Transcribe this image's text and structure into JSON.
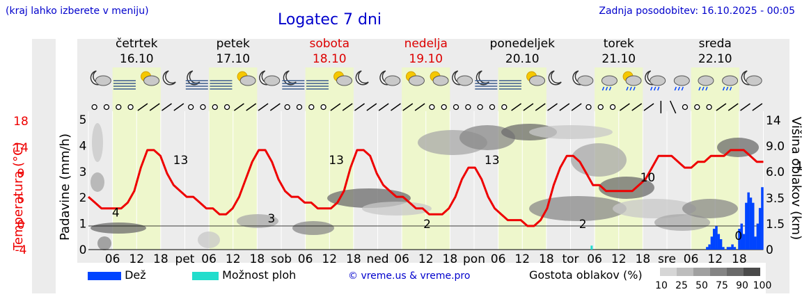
{
  "header": {
    "hint": "(kraj lahko izberete v meniju)",
    "title": "Logatec 7 dni",
    "updated": "Zadnja posodobitev: 16.10.2025 - 00:05"
  },
  "colors": {
    "temp_line": "#ee0000",
    "rain": "#0044ff",
    "storm": "#22ddcc",
    "day_band": "#eef7cc",
    "grid": "#ffffff",
    "panel": "#ececec"
  },
  "legend": {
    "rain_label": "Dež",
    "storm_label": "Možnost ploh",
    "credit": "© vreme.us & vreme.pro",
    "density_title": "Gostota oblakov (%)",
    "density_levels": [
      "10",
      "25",
      "50",
      "75",
      "90",
      "100"
    ],
    "density_colors": [
      "#d6d6d6",
      "#bdbdbd",
      "#a0a0a0",
      "#848484",
      "#6a6a6a",
      "#4a4a4a"
    ]
  },
  "chart_data": {
    "type": "line",
    "title": "Logatec 7 dni",
    "days": [
      {
        "name": "četrtek",
        "date": "16.10",
        "weekend": false,
        "short": ""
      },
      {
        "name": "petek",
        "date": "17.10",
        "weekend": false,
        "short": "pet"
      },
      {
        "name": "sobota",
        "date": "18.10",
        "weekend": true,
        "short": "sob"
      },
      {
        "name": "nedelja",
        "date": "19.10",
        "weekend": true,
        "short": "ned"
      },
      {
        "name": "ponedeljek",
        "date": "20.10",
        "weekend": false,
        "short": "pon"
      },
      {
        "name": "torek",
        "date": "21.10",
        "weekend": false,
        "short": "tor"
      },
      {
        "name": "sreda",
        "date": "22.10",
        "weekend": false,
        "short": "sre"
      }
    ],
    "hour_ticks": [
      "06",
      "12",
      "18"
    ],
    "weather_icons": [
      "moon-cloud",
      "fog",
      "sun-cloud",
      "moon",
      "moon-fog",
      "fog",
      "sun-cloud",
      "moon-cloud",
      "moon-fog",
      "fog",
      "sun-cloud",
      "moon",
      "moon-cloud",
      "sun-cloud",
      "sun-cloud",
      "moon-cloud",
      "moon-fog",
      "fog",
      "sun-cloud",
      "moon",
      "moon-cloud",
      "rain-cloud",
      "sun-rain",
      "moon-rain",
      "rain-cloud",
      "rain-cloud",
      "rain-cloud",
      "moon-cloud"
    ],
    "wind_symbols": [
      "o",
      "o",
      "o",
      "o",
      "/",
      "/",
      "/",
      "/",
      "o",
      "o",
      "o",
      "o",
      "/",
      "/",
      "/",
      "/",
      "o",
      "o",
      "o",
      "o",
      "/",
      "/",
      "/",
      "/",
      "/",
      "/",
      "/",
      "/",
      "o",
      "o",
      "o",
      "o",
      "o",
      "o",
      "o",
      "/",
      "/",
      "/",
      "/",
      "/",
      "/",
      "o",
      "o",
      "o",
      "/",
      "/",
      "/",
      "|",
      "\\",
      "o",
      "o",
      "o",
      "/",
      "/",
      "/",
      "/"
    ],
    "precip_axis": {
      "label": "Padavine (mm/h)",
      "ticks": [
        "0",
        "1",
        "2",
        "3",
        "4",
        "5"
      ],
      "ylim": [
        0,
        5
      ]
    },
    "temp_axis": {
      "label": "Temperatura (°C)",
      "ticks": [
        "-4",
        "0",
        "5",
        "9",
        "14",
        "18"
      ],
      "ylim": [
        -4,
        18
      ]
    },
    "cloud_axis": {
      "label": "Višina oblakov (km)",
      "ticks": [
        "0",
        "1.5",
        "3.5",
        "6.0",
        "9.0",
        "14"
      ]
    },
    "temperature": [
      5,
      4,
      3,
      3,
      3,
      3,
      4,
      6,
      10,
      13,
      13,
      12,
      9,
      7,
      6,
      5,
      5,
      4,
      3,
      3,
      2,
      2,
      3,
      5,
      8,
      11,
      13,
      13,
      11,
      8,
      6,
      5,
      5,
      4,
      4,
      3,
      3,
      3,
      4,
      6,
      10,
      13,
      13,
      12,
      9,
      7,
      6,
      5,
      5,
      4,
      3,
      3,
      2,
      2,
      2,
      3,
      5,
      8,
      10,
      10,
      8,
      5,
      3,
      2,
      1,
      1,
      1,
      0,
      0,
      1,
      3,
      7,
      10,
      12,
      12,
      11,
      9,
      7,
      7,
      6,
      6,
      6,
      6,
      6,
      7,
      8,
      10,
      12,
      12,
      12,
      11,
      10,
      10,
      11,
      11,
      12,
      12,
      12,
      13,
      13,
      13,
      12,
      11,
      11
    ],
    "temp_labels": [
      "4",
      "13",
      "3",
      "13",
      "2",
      "13",
      "2",
      "10",
      "0",
      "12",
      "6",
      "12",
      "9",
      "13",
      "10"
    ],
    "rain_bars_mm": [
      0,
      0,
      0,
      0,
      0,
      0,
      0,
      0,
      0,
      0,
      0.1,
      0.2,
      0.5,
      0.8,
      0.9,
      0.6,
      0.4,
      0.1,
      0,
      0.1,
      0.1,
      0.2,
      0.1,
      0,
      0.8,
      1.0,
      0.6,
      1.8,
      2.2,
      2.0,
      1.8,
      0.5,
      1.0,
      1.6,
      2.4
    ],
    "storm_bars_mm": [
      0.1
    ]
  }
}
